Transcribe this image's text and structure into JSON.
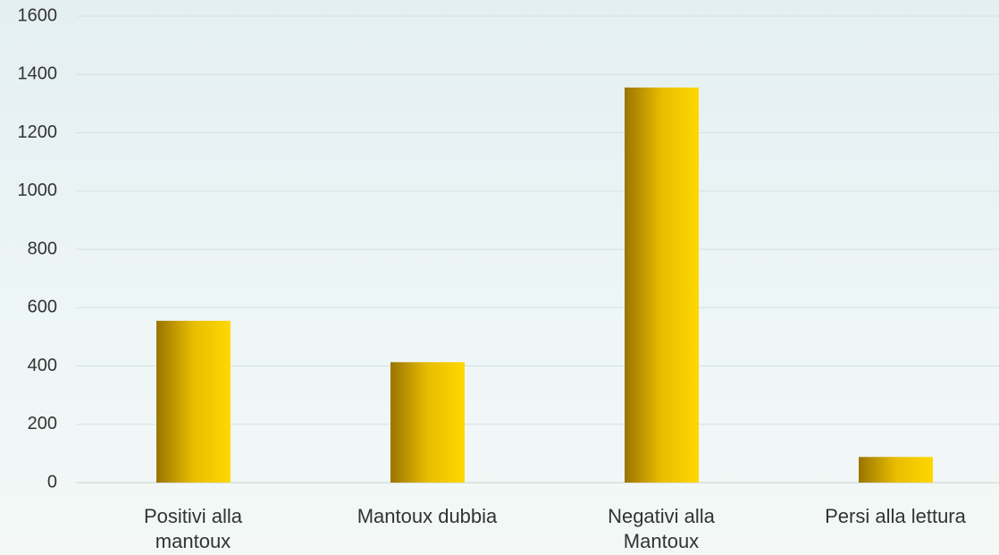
{
  "chart_data": {
    "type": "bar",
    "categories": [
      "Positivi alla\nmantoux",
      "Mantoux dubbia",
      "Negativi alla\nMantoux",
      "Persi alla lettura"
    ],
    "values": [
      555,
      413,
      1355,
      88
    ],
    "color": "#f5cc00",
    "ylim": [
      0,
      1600
    ],
    "yticks": [
      0,
      200,
      400,
      600,
      800,
      1000,
      1200,
      1400,
      1600
    ],
    "grid": true
  }
}
